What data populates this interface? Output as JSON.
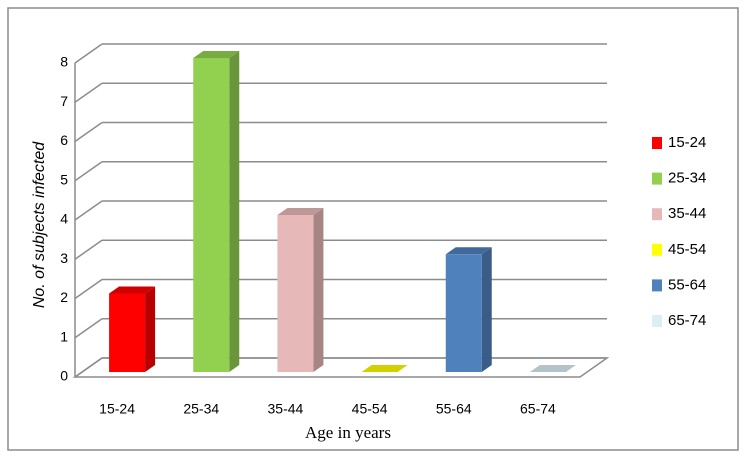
{
  "chart_data": {
    "type": "bar",
    "categories": [
      "15-24",
      "25-34",
      "35-44",
      "45-54",
      "55-64",
      "65-74"
    ],
    "values": [
      2,
      8,
      4,
      0,
      3,
      0
    ],
    "colors": [
      "#ff0000",
      "#92d050",
      "#e6b9b8",
      "#ffff00",
      "#4f81bd",
      "#dbeef4"
    ],
    "ylim": [
      0,
      8
    ],
    "yticks": [
      0,
      1,
      2,
      3,
      4,
      5,
      6,
      7,
      8
    ],
    "grid": true,
    "ylabel": "No. of subjects infected",
    "xlabel": "Age in years",
    "legend": "right"
  }
}
